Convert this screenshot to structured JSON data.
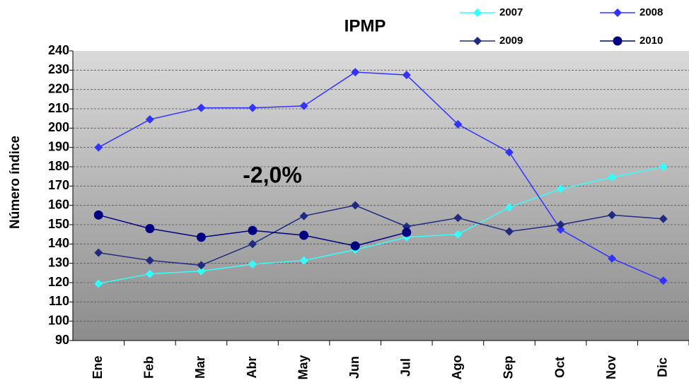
{
  "chart_data": {
    "type": "line",
    "title": "IPMP",
    "y_label": "Número índice",
    "annotation": "-2,0%",
    "categories": [
      "Ene",
      "Feb",
      "Mar",
      "Abr",
      "May",
      "Jun",
      "Jul",
      "Ago",
      "Sep",
      "Oct",
      "Nov",
      "Dic"
    ],
    "series": [
      {
        "name": "2007",
        "color": "#33ffff",
        "marker": "diamond",
        "values": [
          119.5,
          124.5,
          126,
          129.5,
          131.5,
          137,
          143.5,
          145,
          159,
          168.5,
          174.5,
          180
        ]
      },
      {
        "name": "2008",
        "color": "#3333ff",
        "marker": "diamond",
        "values": [
          190,
          204.5,
          210.5,
          210.5,
          211.5,
          229,
          227.5,
          202,
          187.5,
          147.5,
          132.5,
          121
        ]
      },
      {
        "name": "2009",
        "color": "#1f2a80",
        "marker": "diamond",
        "values": [
          135.5,
          131.5,
          129,
          140,
          154.5,
          160,
          149,
          153.5,
          146.5,
          150,
          155,
          153
        ]
      },
      {
        "name": "2010",
        "color": "#000080",
        "marker": "circle",
        "values": [
          155,
          148,
          143.5,
          147,
          144.5,
          139,
          146,
          null,
          null,
          null,
          null,
          null
        ]
      }
    ],
    "ylim": [
      90,
      240
    ],
    "yticks": [
      90,
      100,
      110,
      120,
      130,
      140,
      150,
      160,
      170,
      180,
      190,
      200,
      210,
      220,
      230,
      240
    ],
    "grid": true
  }
}
